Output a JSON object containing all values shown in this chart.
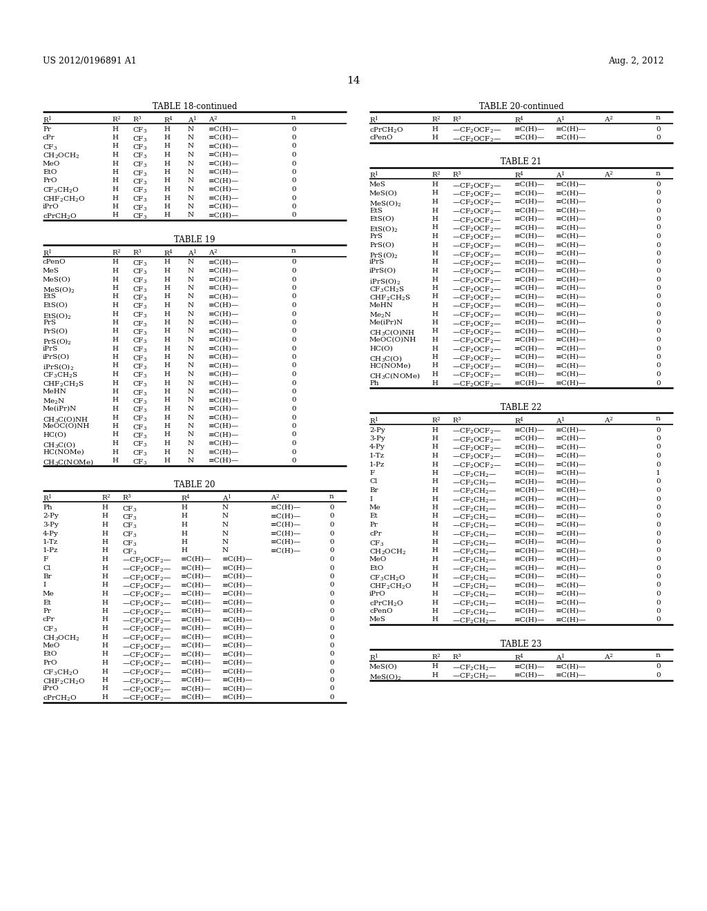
{
  "page_header_left": "US 2012/0196891 A1",
  "page_header_right": "Aug. 2, 2012",
  "page_number": "14",
  "background_color": "#ffffff",
  "text_color": "#000000",
  "tables": [
    {
      "title": "TABLE 18-continued",
      "columns": [
        "R$^1$",
        "R$^2$",
        "R$^3$",
        "R$^4$",
        "A$^1$",
        "A$^2$",
        "n"
      ],
      "col_labels": [
        "R1",
        "R2",
        "R3",
        "R4",
        "A1",
        "A2",
        "n"
      ],
      "rows": [
        [
          "Pr",
          "H",
          "CF$_3$",
          "H",
          "N",
          "≡C(H)—",
          "0"
        ],
        [
          "cPr",
          "H",
          "CF$_3$",
          "H",
          "N",
          "≡C(H)—",
          "0"
        ],
        [
          "CF$_3$",
          "H",
          "CF$_3$",
          "H",
          "N",
          "≡C(H)—",
          "0"
        ],
        [
          "CH$_2$OCH$_2$",
          "H",
          "CF$_3$",
          "H",
          "N",
          "≡C(H)—",
          "0"
        ],
        [
          "MeO",
          "H",
          "CF$_3$",
          "H",
          "N",
          "≡C(H)—",
          "0"
        ],
        [
          "EtO",
          "H",
          "CF$_3$",
          "H",
          "N",
          "≡C(H)—",
          "0"
        ],
        [
          "PrO",
          "H",
          "CF$_3$",
          "H",
          "N",
          "≡C(H)—",
          "0"
        ],
        [
          "CF$_3$CH$_2$O",
          "H",
          "CF$_3$",
          "H",
          "N",
          "≡C(H)—",
          "0"
        ],
        [
          "CHF$_2$CH$_2$O",
          "H",
          "CF$_3$",
          "H",
          "N",
          "≡C(H)—",
          "0"
        ],
        [
          "iPrO",
          "H",
          "CF$_3$",
          "H",
          "N",
          "≡C(H)—",
          "0"
        ],
        [
          "cPrCH$_2$O",
          "H",
          "CF$_3$",
          "H",
          "N",
          "≡C(H)—",
          "0"
        ]
      ]
    },
    {
      "title": "TABLE 19",
      "columns": [
        "R$^1$",
        "R$^2$",
        "R$^3$",
        "R$^4$",
        "A$^1$",
        "A$^2$",
        "n"
      ],
      "col_labels": [
        "R1",
        "R2",
        "R3",
        "R4",
        "A1",
        "A2",
        "n"
      ],
      "rows": [
        [
          "cPenO",
          "H",
          "CF$_3$",
          "H",
          "N",
          "≡C(H)—",
          "0"
        ],
        [
          "MeS",
          "H",
          "CF$_3$",
          "H",
          "N",
          "≡C(H)—",
          "0"
        ],
        [
          "MeS(O)",
          "H",
          "CF$_3$",
          "H",
          "N",
          "≡C(H)—",
          "0"
        ],
        [
          "MeS(O)$_2$",
          "H",
          "CF$_3$",
          "H",
          "N",
          "≡C(H)—",
          "0"
        ],
        [
          "EtS",
          "H",
          "CF$_3$",
          "H",
          "N",
          "≡C(H)—",
          "0"
        ],
        [
          "EtS(O)",
          "H",
          "CF$_3$",
          "H",
          "N",
          "≡C(H)—",
          "0"
        ],
        [
          "EtS(O)$_2$",
          "H",
          "CF$_3$",
          "H",
          "N",
          "≡C(H)—",
          "0"
        ],
        [
          "PrS",
          "H",
          "CF$_3$",
          "H",
          "N",
          "≡C(H)—",
          "0"
        ],
        [
          "PrS(O)",
          "H",
          "CF$_3$",
          "H",
          "N",
          "≡C(H)—",
          "0"
        ],
        [
          "PrS(O)$_2$",
          "H",
          "CF$_3$",
          "H",
          "N",
          "≡C(H)—",
          "0"
        ],
        [
          "iPrS",
          "H",
          "CF$_3$",
          "H",
          "N",
          "≡C(H)—",
          "0"
        ],
        [
          "iPrS(O)",
          "H",
          "CF$_3$",
          "H",
          "N",
          "≡C(H)—",
          "0"
        ],
        [
          "iPrS(O)$_2$",
          "H",
          "CF$_3$",
          "H",
          "N",
          "≡C(H)—",
          "0"
        ],
        [
          "CF$_3$CH$_2$S",
          "H",
          "CF$_3$",
          "H",
          "N",
          "≡C(H)—",
          "0"
        ],
        [
          "CHF$_2$CH$_2$S",
          "H",
          "CF$_3$",
          "H",
          "N",
          "≡C(H)—",
          "0"
        ],
        [
          "MeHN",
          "H",
          "CF$_3$",
          "H",
          "N",
          "≡C(H)—",
          "0"
        ],
        [
          "Me$_2$N",
          "H",
          "CF$_3$",
          "H",
          "N",
          "≡C(H)—",
          "0"
        ],
        [
          "Me(iPr)N",
          "H",
          "CF$_3$",
          "H",
          "N",
          "≡C(H)—",
          "0"
        ],
        [
          "CH$_3$C(O)NH",
          "H",
          "CF$_3$",
          "H",
          "N",
          "≡C(H)—",
          "0"
        ],
        [
          "MeOC(O)NH",
          "H",
          "CF$_3$",
          "H",
          "N",
          "≡C(H)—",
          "0"
        ],
        [
          "HC(O)",
          "H",
          "CF$_3$",
          "H",
          "N",
          "≡C(H)—",
          "0"
        ],
        [
          "CH$_3$C(O)",
          "H",
          "CF$_3$",
          "H",
          "N",
          "≡C(H)—",
          "0"
        ],
        [
          "HC(NOMe)",
          "H",
          "CF$_3$",
          "H",
          "N",
          "≡C(H)—",
          "0"
        ],
        [
          "CH$_3$C(NOMe)",
          "H",
          "CF$_3$",
          "H",
          "N",
          "≡C(H)—",
          "0"
        ]
      ]
    },
    {
      "title": "TABLE 20",
      "columns": [
        "R$^1$",
        "R$^2$",
        "R$^3$",
        "R$^4$",
        "A$^1$",
        "A$^2$",
        "n"
      ],
      "col_labels": [
        "R1",
        "R2",
        "R3",
        "R4",
        "A1",
        "A2",
        "n"
      ],
      "rows": [
        [
          "Ph",
          "H",
          "CF$_3$",
          "H",
          "N",
          "≡C(H)—",
          "0"
        ],
        [
          "2-Py",
          "H",
          "CF$_3$",
          "H",
          "N",
          "≡C(H)—",
          "0"
        ],
        [
          "3-Py",
          "H",
          "CF$_3$",
          "H",
          "N",
          "≡C(H)—",
          "0"
        ],
        [
          "4-Py",
          "H",
          "CF$_3$",
          "H",
          "N",
          "≡C(H)—",
          "0"
        ],
        [
          "1-Tz",
          "H",
          "CF$_3$",
          "H",
          "N",
          "≡C(H)—",
          "0"
        ],
        [
          "1-Pz",
          "H",
          "CF$_3$",
          "H",
          "N",
          "≡C(H)—",
          "0"
        ],
        [
          "F",
          "H",
          "—CF$_2$OCF$_2$—",
          "≡C(H)—",
          "≡C(H)—",
          "",
          "0"
        ],
        [
          "Cl",
          "H",
          "—CF$_2$OCF$_2$—",
          "≡C(H)—",
          "≡C(H)—",
          "",
          "0"
        ],
        [
          "Br",
          "H",
          "—CF$_2$OCF$_2$—",
          "≡C(H)—",
          "≡C(H)—",
          "",
          "0"
        ],
        [
          "I",
          "H",
          "—CF$_2$OCF$_2$—",
          "≡C(H)—",
          "≡C(H)—",
          "",
          "0"
        ],
        [
          "Me",
          "H",
          "—CF$_2$OCF$_2$—",
          "≡C(H)—",
          "≡C(H)—",
          "",
          "0"
        ],
        [
          "Et",
          "H",
          "—CF$_2$OCF$_2$—",
          "≡C(H)—",
          "≡C(H)—",
          "",
          "0"
        ],
        [
          "Pr",
          "H",
          "—CF$_2$OCF$_2$—",
          "≡C(H)—",
          "≡C(H)—",
          "",
          "0"
        ],
        [
          "cPr",
          "H",
          "—CF$_2$OCF$_2$—",
          "≡C(H)—",
          "≡C(H)—",
          "",
          "0"
        ],
        [
          "CF$_3$",
          "H",
          "—CF$_2$OCF$_2$—",
          "≡C(H)—",
          "≡C(H)—",
          "",
          "0"
        ],
        [
          "CH$_3$OCH$_2$",
          "H",
          "—CF$_2$OCF$_2$—",
          "≡C(H)—",
          "≡C(H)—",
          "",
          "0"
        ],
        [
          "MeO",
          "H",
          "—CF$_2$OCF$_2$—",
          "≡C(H)—",
          "≡C(H)—",
          "",
          "0"
        ],
        [
          "EtO",
          "H",
          "—CF$_2$OCF$_2$—",
          "≡C(H)—",
          "≡C(H)—",
          "",
          "0"
        ],
        [
          "PrO",
          "H",
          "—CF$_2$OCF$_2$—",
          "≡C(H)—",
          "≡C(H)—",
          "",
          "0"
        ],
        [
          "CF$_3$CH$_2$O",
          "H",
          "—CF$_2$OCF$_2$—",
          "≡C(H)—",
          "≡C(H)—",
          "",
          "0"
        ],
        [
          "CHF$_2$CH$_2$O",
          "H",
          "—CF$_2$OCF$_2$—",
          "≡C(H)—",
          "≡C(H)—",
          "",
          "0"
        ],
        [
          "iPrO",
          "H",
          "—CF$_2$OCF$_2$—",
          "≡C(H)—",
          "≡C(H)—",
          "",
          "0"
        ],
        [
          "cPrCH$_2$O",
          "H",
          "—CF$_2$OCF$_2$—",
          "≡C(H)—",
          "≡C(H)—",
          "",
          "0"
        ]
      ]
    },
    {
      "title": "TABLE 20-continued",
      "columns": [
        "R$^1$",
        "R$^2$",
        "R$^3$",
        "R$^4$",
        "A$^1$",
        "A$^2$",
        "n"
      ],
      "col_labels": [
        "R1",
        "R2",
        "R3",
        "R4",
        "A1",
        "A2",
        "n"
      ],
      "rows": [
        [
          "cPrCH$_2$O",
          "H",
          "—CF$_2$OCF$_2$—",
          "≡C(H)—",
          "≡C(H)—",
          "",
          "0"
        ],
        [
          "cPenO",
          "H",
          "—CF$_2$OCF$_2$—",
          "≡C(H)—",
          "≡C(H)—",
          "",
          "0"
        ]
      ]
    },
    {
      "title": "TABLE 21",
      "columns": [
        "R$^1$",
        "R$^2$",
        "R$^3$",
        "R$^4$",
        "A$^1$",
        "A$^2$",
        "n"
      ],
      "col_labels": [
        "R1",
        "R2",
        "R3",
        "R4",
        "A1",
        "A2",
        "n"
      ],
      "rows": [
        [
          "MeS",
          "H",
          "—CF$_2$OCF$_2$—",
          "≡C(H)—",
          "≡C(H)—",
          "",
          "0"
        ],
        [
          "MeS(O)",
          "H",
          "—CF$_2$OCF$_2$—",
          "≡C(H)—",
          "≡C(H)—",
          "",
          "0"
        ],
        [
          "MeS(O)$_2$",
          "H",
          "—CF$_2$OCF$_2$—",
          "≡C(H)—",
          "≡C(H)—",
          "",
          "0"
        ],
        [
          "EtS",
          "H",
          "—CF$_2$OCF$_2$—",
          "≡C(H)—",
          "≡C(H)—",
          "",
          "0"
        ],
        [
          "EtS(O)",
          "H",
          "—CF$_2$OCF$_2$—",
          "≡C(H)—",
          "≡C(H)—",
          "",
          "0"
        ],
        [
          "EtS(O)$_2$",
          "H",
          "—CF$_2$OCF$_2$—",
          "≡C(H)—",
          "≡C(H)—",
          "",
          "0"
        ],
        [
          "PrS",
          "H",
          "—CF$_2$OCF$_2$—",
          "≡C(H)—",
          "≡C(H)—",
          "",
          "0"
        ],
        [
          "PrS(O)",
          "H",
          "—CF$_2$OCF$_2$—",
          "≡C(H)—",
          "≡C(H)—",
          "",
          "0"
        ],
        [
          "PrS(O)$_2$",
          "H",
          "—CF$_2$OCF$_2$—",
          "≡C(H)—",
          "≡C(H)—",
          "",
          "0"
        ],
        [
          "iPrS",
          "H",
          "—CF$_2$OCF$_2$—",
          "≡C(H)—",
          "≡C(H)—",
          "",
          "0"
        ],
        [
          "iPrS(O)",
          "H",
          "—CF$_2$OCF$_2$—",
          "≡C(H)—",
          "≡C(H)—",
          "",
          "0"
        ],
        [
          "iPrS(O)$_2$",
          "H",
          "—CF$_2$OCF$_2$—",
          "≡C(H)—",
          "≡C(H)—",
          "",
          "0"
        ],
        [
          "CF$_3$CH$_2$S",
          "H",
          "—CF$_2$OCF$_2$—",
          "≡C(H)—",
          "≡C(H)—",
          "",
          "0"
        ],
        [
          "CHF$_2$CH$_2$S",
          "H",
          "—CF$_2$OCF$_2$—",
          "≡C(H)—",
          "≡C(H)—",
          "",
          "0"
        ],
        [
          "MeHN",
          "H",
          "—CF$_2$OCF$_2$—",
          "≡C(H)—",
          "≡C(H)—",
          "",
          "0"
        ],
        [
          "Me$_2$N",
          "H",
          "—CF$_2$OCF$_2$—",
          "≡C(H)—",
          "≡C(H)—",
          "",
          "0"
        ],
        [
          "Me(iPr)N",
          "H",
          "—CF$_2$OCF$_2$—",
          "≡C(H)—",
          "≡C(H)—",
          "",
          "0"
        ],
        [
          "CH$_3$C(O)NH",
          "H",
          "—CF$_2$OCF$_2$—",
          "≡C(H)—",
          "≡C(H)—",
          "",
          "0"
        ],
        [
          "MeOC(O)NH",
          "H",
          "—CF$_2$OCF$_2$—",
          "≡C(H)—",
          "≡C(H)—",
          "",
          "0"
        ],
        [
          "HC(O)",
          "H",
          "—CF$_2$OCF$_2$—",
          "≡C(H)—",
          "≡C(H)—",
          "",
          "0"
        ],
        [
          "CH$_3$C(O)",
          "H",
          "—CF$_2$OCF$_2$—",
          "≡C(H)—",
          "≡C(H)—",
          "",
          "0"
        ],
        [
          "HC(NOMe)",
          "H",
          "—CF$_2$OCF$_2$—",
          "≡C(H)—",
          "≡C(H)—",
          "",
          "0"
        ],
        [
          "CH$_3$C(NOMe)",
          "H",
          "—CF$_2$OCF$_2$—",
          "≡C(H)—",
          "≡C(H)—",
          "",
          "0"
        ],
        [
          "Ph",
          "H",
          "—CF$_2$OCF$_2$—",
          "≡C(H)—",
          "≡C(H)—",
          "",
          "0"
        ]
      ]
    },
    {
      "title": "TABLE 22",
      "columns": [
        "R$^1$",
        "R$^2$",
        "R$^3$",
        "R$^4$",
        "A$^1$",
        "A$^2$",
        "n"
      ],
      "col_labels": [
        "R1",
        "R2",
        "R3",
        "R4",
        "A1",
        "A2",
        "n"
      ],
      "rows": [
        [
          "2-Py",
          "H",
          "—CF$_2$OCF$_2$—",
          "≡C(H)—",
          "≡C(H)—",
          "",
          "0"
        ],
        [
          "3-Py",
          "H",
          "—CF$_2$OCF$_2$—",
          "≡C(H)—",
          "≡C(H)—",
          "",
          "0"
        ],
        [
          "4-Py",
          "H",
          "—CF$_2$OCF$_2$—",
          "≡C(H)—",
          "≡C(H)—",
          "",
          "0"
        ],
        [
          "1-Tz",
          "H",
          "—CF$_2$OCF$_2$—",
          "≡C(H)—",
          "≡C(H)—",
          "",
          "0"
        ],
        [
          "1-Pz",
          "H",
          "—CF$_2$OCF$_2$—",
          "≡C(H)—",
          "≡C(H)—",
          "",
          "0"
        ],
        [
          "F",
          "H",
          "—CF$_2$CH$_2$—",
          "≡C(H)—",
          "≡C(H)—",
          "",
          "1"
        ],
        [
          "Cl",
          "H",
          "—CF$_2$CH$_2$—",
          "≡C(H)—",
          "≡C(H)—",
          "",
          "0"
        ],
        [
          "Br",
          "H",
          "—CF$_2$CH$_2$—",
          "≡C(H)—",
          "≡C(H)—",
          "",
          "0"
        ],
        [
          "I",
          "H",
          "—CF$_2$CH$_2$—",
          "≡C(H)—",
          "≡C(H)—",
          "",
          "0"
        ],
        [
          "Me",
          "H",
          "—CF$_2$CH$_2$—",
          "≡C(H)—",
          "≡C(H)—",
          "",
          "0"
        ],
        [
          "Et",
          "H",
          "—CF$_2$CH$_2$—",
          "≡C(H)—",
          "≡C(H)—",
          "",
          "0"
        ],
        [
          "Pr",
          "H",
          "—CF$_2$CH$_2$—",
          "≡C(H)—",
          "≡C(H)—",
          "",
          "0"
        ],
        [
          "cPr",
          "H",
          "—CF$_2$CH$_2$—",
          "≡C(H)—",
          "≡C(H)—",
          "",
          "0"
        ],
        [
          "CF$_3$",
          "H",
          "—CF$_2$CH$_2$—",
          "≡C(H)—",
          "≡C(H)—",
          "",
          "0"
        ],
        [
          "CH$_2$OCH$_2$",
          "H",
          "—CF$_2$CH$_2$—",
          "≡C(H)—",
          "≡C(H)—",
          "",
          "0"
        ],
        [
          "MeO",
          "H",
          "—CF$_2$CH$_2$—",
          "≡C(H)—",
          "≡C(H)—",
          "",
          "0"
        ],
        [
          "EtO",
          "H",
          "—CF$_2$CH$_2$—",
          "≡C(H)—",
          "≡C(H)—",
          "",
          "0"
        ],
        [
          "CF$_3$CH$_2$O",
          "H",
          "—CF$_2$CH$_2$—",
          "≡C(H)—",
          "≡C(H)—",
          "",
          "0"
        ],
        [
          "CHF$_2$CH$_2$O",
          "H",
          "—CF$_2$CH$_2$—",
          "≡C(H)—",
          "≡C(H)—",
          "",
          "0"
        ],
        [
          "iPrO",
          "H",
          "—CF$_2$CH$_2$—",
          "≡C(H)—",
          "≡C(H)—",
          "",
          "0"
        ],
        [
          "cPrCH$_2$O",
          "H",
          "—CF$_2$CH$_2$—",
          "≡C(H)—",
          "≡C(H)—",
          "",
          "0"
        ],
        [
          "cPenO",
          "H",
          "—CF$_2$CH$_2$—",
          "≡C(H)—",
          "≡C(H)—",
          "",
          "0"
        ],
        [
          "MeS",
          "H",
          "—CF$_2$CH$_2$—",
          "≡C(H)—",
          "≡C(H)—",
          "",
          "0"
        ]
      ]
    },
    {
      "title": "TABLE 23",
      "columns": [
        "R$^1$",
        "R$^2$",
        "R$^3$",
        "R$^4$",
        "A$^1$",
        "A$^2$",
        "n"
      ],
      "col_labels": [
        "R1",
        "R2",
        "R3",
        "R4",
        "A1",
        "A2",
        "n"
      ],
      "rows": [
        [
          "MeS(O)",
          "H",
          "—CF$_2$CH$_2$—",
          "≡C(H)—",
          "≡C(H)—",
          "",
          "0"
        ],
        [
          "MeS(O)$_2$",
          "H",
          "—CF$_2$CH$_2$—",
          "≡C(H)—",
          "≡C(H)—",
          "",
          "0"
        ]
      ]
    }
  ]
}
